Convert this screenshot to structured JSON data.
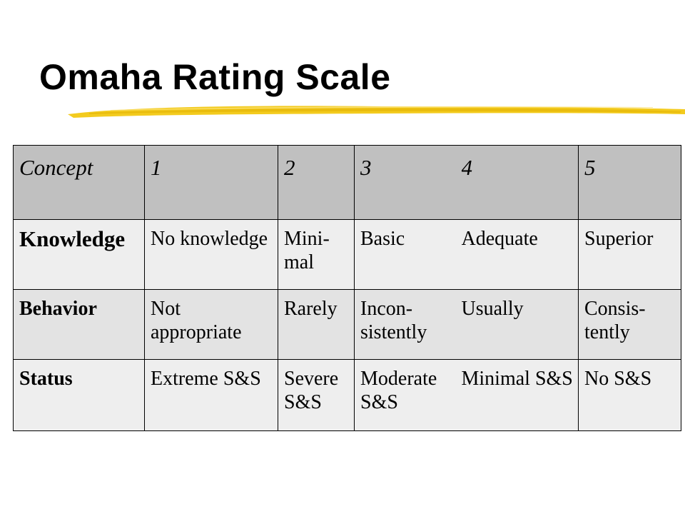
{
  "slide": {
    "title": "Omaha Rating Scale"
  },
  "table": {
    "header": {
      "concept": "Concept",
      "r1": "1",
      "r2": "2",
      "r3": "3",
      "r4": "4",
      "r5": "5"
    },
    "rows": [
      {
        "concept": "Knowledge",
        "r1": "No knowledge",
        "r2": "Mini-mal",
        "r3": "Basic",
        "r4": "Adequate",
        "r5": "Superior"
      },
      {
        "concept": "Behavior",
        "r1": "Not appropriate",
        "r2": "Rarely",
        "r3": "Incon-sistently",
        "r4": "Usually",
        "r5": "Consis-tently"
      },
      {
        "concept": "Status",
        "r1": "Extreme S&S",
        "r2": "Severe S&S",
        "r3": "Moderate S&S",
        "r4": "Minimal S&S",
        "r5": "No S&S"
      }
    ]
  },
  "colors": {
    "header_background": "#c0c0c0",
    "row_background": "#eeeeee",
    "accent_stroke": "#f2c812"
  }
}
